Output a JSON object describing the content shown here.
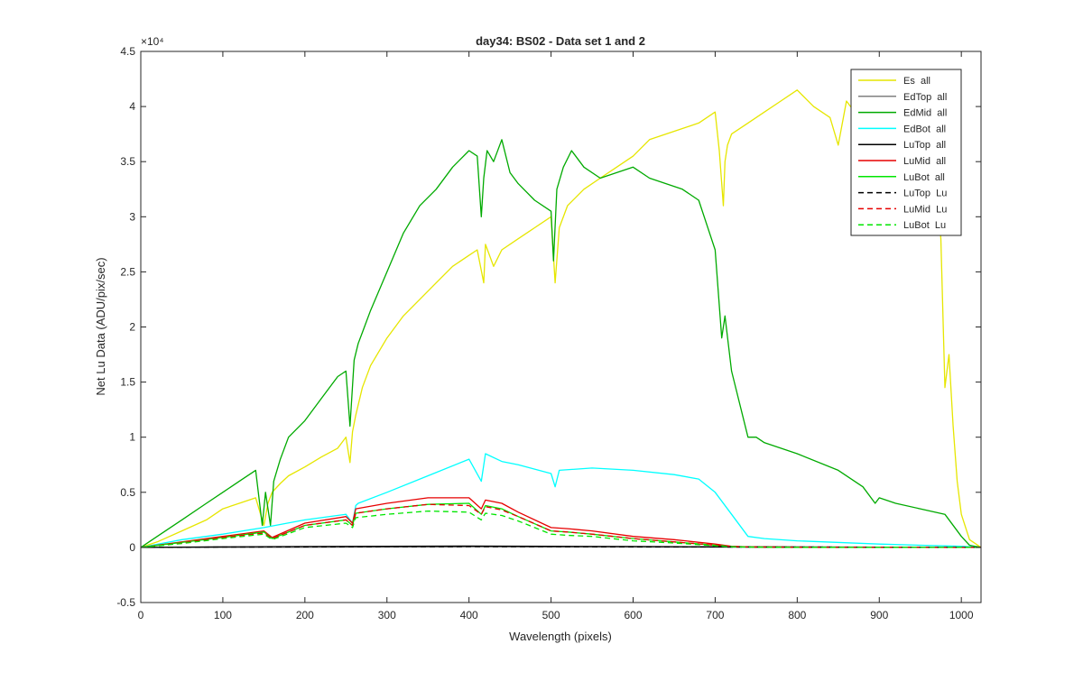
{
  "chart_data": {
    "type": "line",
    "title": "day34: BS02 - Data set 1 and 2",
    "xlabel": "Wavelength (pixels)",
    "ylabel": "Net Lu Data (ADU/pix/sec)",
    "xlim": [
      0,
      1024
    ],
    "ylim": [
      -5000,
      45000
    ],
    "xticks": [
      0,
      100,
      200,
      300,
      400,
      500,
      600,
      700,
      800,
      900,
      1000
    ],
    "xtick_labels": [
      "0",
      "100",
      "200",
      "300",
      "400",
      "500",
      "600",
      "700",
      "800",
      "900",
      "1000"
    ],
    "yticks": [
      -5000,
      0,
      5000,
      10000,
      15000,
      20000,
      25000,
      30000,
      35000,
      40000,
      45000
    ],
    "ytick_labels": [
      "-0.5",
      "0",
      "0.5",
      "1",
      "1.5",
      "2",
      "2.5",
      "3",
      "3.5",
      "4",
      "4.5"
    ],
    "y_exponent_label": "×10⁴",
    "grid": false,
    "legend_position": "top-right",
    "series": [
      {
        "name": "Es  all",
        "color": "#e6e600",
        "dash": "solid",
        "x": [
          0,
          20,
          50,
          80,
          100,
          120,
          140,
          150,
          155,
          160,
          170,
          180,
          200,
          220,
          240,
          250,
          255,
          258,
          262,
          270,
          280,
          300,
          320,
          340,
          360,
          380,
          400,
          410,
          418,
          420,
          430,
          440,
          460,
          480,
          500,
          505,
          510,
          520,
          540,
          560,
          580,
          600,
          620,
          640,
          660,
          680,
          700,
          705,
          710,
          712,
          715,
          720,
          740,
          760,
          780,
          800,
          820,
          840,
          850,
          860,
          870,
          880,
          900,
          920,
          940,
          960,
          970,
          975,
          980,
          985,
          990,
          995,
          1000,
          1010,
          1024
        ],
        "y": [
          0,
          500,
          1500,
          2500,
          3500,
          4000,
          4500,
          2000,
          4000,
          5000,
          5800,
          6500,
          7300,
          8200,
          9000,
          10000,
          7700,
          10500,
          12000,
          14500,
          16500,
          19000,
          21000,
          22500,
          24000,
          25500,
          26500,
          27000,
          24000,
          27500,
          25500,
          27000,
          28000,
          29000,
          30000,
          24000,
          29000,
          31000,
          32500,
          33500,
          34500,
          35500,
          37000,
          37500,
          38000,
          38500,
          39500,
          36000,
          31000,
          35000,
          36500,
          37500,
          38500,
          39500,
          40500,
          41500,
          40000,
          39000,
          36500,
          40500,
          39500,
          40000,
          41000,
          40000,
          39500,
          38000,
          33000,
          28000,
          14500,
          17500,
          11000,
          6000,
          3000,
          700,
          0
        ]
      },
      {
        "name": "EdTop  all",
        "color": "#808080",
        "dash": "solid",
        "x": [
          0,
          200,
          400,
          600,
          800,
          1024
        ],
        "y": [
          0,
          20,
          40,
          30,
          20,
          0
        ]
      },
      {
        "name": "EdMid  all",
        "color": "#00aa00",
        "dash": "solid",
        "x": [
          0,
          20,
          50,
          80,
          100,
          120,
          140,
          148,
          152,
          158,
          162,
          170,
          180,
          200,
          220,
          240,
          250,
          255,
          260,
          265,
          270,
          280,
          300,
          320,
          340,
          360,
          380,
          400,
          410,
          415,
          418,
          422,
          430,
          440,
          450,
          460,
          480,
          500,
          503,
          507,
          515,
          525,
          540,
          560,
          580,
          600,
          620,
          640,
          660,
          680,
          700,
          708,
          712,
          720,
          740,
          750,
          760,
          800,
          850,
          880,
          895,
          900,
          920,
          950,
          980,
          1000,
          1010,
          1024
        ],
        "y": [
          0,
          1000,
          2500,
          4000,
          5000,
          6000,
          7000,
          2000,
          5000,
          2000,
          6000,
          8000,
          10000,
          11500,
          13500,
          15500,
          16000,
          11000,
          17000,
          18500,
          19500,
          21500,
          25000,
          28500,
          31000,
          32500,
          34500,
          36000,
          35500,
          30000,
          33500,
          36000,
          35000,
          37000,
          34000,
          33000,
          31500,
          30500,
          26000,
          32500,
          34500,
          36000,
          34500,
          33500,
          34000,
          34500,
          33500,
          33000,
          32500,
          31500,
          27000,
          19000,
          21000,
          16000,
          10000,
          10000,
          9500,
          8500,
          7000,
          5500,
          4000,
          4500,
          4000,
          3500,
          3000,
          1000,
          200,
          0
        ]
      },
      {
        "name": "EdBot  all",
        "color": "#00ffff",
        "dash": "solid",
        "x": [
          0,
          50,
          100,
          150,
          200,
          250,
          258,
          262,
          265,
          300,
          350,
          400,
          415,
          420,
          440,
          460,
          500,
          505,
          510,
          550,
          600,
          650,
          680,
          700,
          720,
          740,
          760,
          800,
          900,
          1000,
          1024
        ],
        "y": [
          0,
          700,
          1200,
          1800,
          2500,
          3000,
          2200,
          3800,
          4000,
          5000,
          6500,
          8000,
          6000,
          8500,
          7800,
          7500,
          6700,
          5500,
          7000,
          7200,
          7000,
          6600,
          6200,
          5000,
          3000,
          1000,
          800,
          600,
          300,
          100,
          0
        ]
      },
      {
        "name": "LuTop  all",
        "color": "#000000",
        "dash": "solid",
        "x": [
          0,
          100,
          200,
          300,
          400,
          500,
          600,
          700,
          800,
          900,
          1024
        ],
        "y": [
          0,
          50,
          80,
          100,
          120,
          100,
          80,
          60,
          40,
          20,
          0
        ]
      },
      {
        "name": "LuMid  all",
        "color": "#e60000",
        "dash": "solid",
        "x": [
          0,
          50,
          100,
          150,
          160,
          200,
          250,
          258,
          262,
          300,
          350,
          400,
          415,
          420,
          440,
          460,
          500,
          520,
          550,
          600,
          650,
          700,
          720,
          740,
          800,
          900,
          1000,
          1024
        ],
        "y": [
          0,
          500,
          1000,
          1500,
          900,
          2200,
          2800,
          2200,
          3500,
          4000,
          4500,
          4500,
          3500,
          4300,
          4000,
          3200,
          1800,
          1700,
          1500,
          1000,
          700,
          300,
          100,
          50,
          20,
          10,
          5,
          0
        ]
      },
      {
        "name": "LuBot  all",
        "color": "#00e600",
        "dash": "solid",
        "x": [
          0,
          50,
          100,
          150,
          160,
          200,
          250,
          258,
          262,
          300,
          350,
          400,
          415,
          420,
          440,
          460,
          500,
          520,
          550,
          600,
          650,
          700,
          720,
          740,
          800,
          900,
          1000,
          1024
        ],
        "y": [
          0,
          450,
          900,
          1400,
          800,
          2000,
          2500,
          2000,
          3100,
          3500,
          3900,
          4000,
          3000,
          3800,
          3500,
          2800,
          1500,
          1400,
          1200,
          800,
          500,
          200,
          80,
          40,
          15,
          8,
          4,
          0
        ]
      },
      {
        "name": "LuTop  Lu",
        "color": "#000000",
        "dash": "dashed",
        "x": [
          0,
          100,
          200,
          300,
          400,
          500,
          600,
          700,
          800,
          900,
          1024
        ],
        "y": [
          0,
          30,
          50,
          70,
          80,
          70,
          50,
          40,
          30,
          15,
          0
        ]
      },
      {
        "name": "LuMid  Lu",
        "color": "#e60000",
        "dash": "dashed",
        "x": [
          0,
          50,
          100,
          150,
          160,
          200,
          250,
          258,
          262,
          300,
          350,
          400,
          415,
          420,
          440,
          460,
          500,
          520,
          550,
          600,
          650,
          700,
          720,
          740,
          800,
          900,
          1000,
          1024
        ],
        "y": [
          0,
          400,
          900,
          1300,
          800,
          2000,
          2500,
          2000,
          3100,
          3500,
          3900,
          3800,
          3000,
          3700,
          3400,
          2800,
          1500,
          1400,
          1200,
          800,
          500,
          200,
          80,
          40,
          15,
          8,
          4,
          0
        ]
      },
      {
        "name": "LuBot  Lu",
        "color": "#00e600",
        "dash": "dashed",
        "x": [
          0,
          50,
          100,
          150,
          160,
          200,
          250,
          258,
          262,
          300,
          350,
          400,
          415,
          420,
          440,
          460,
          500,
          520,
          550,
          600,
          650,
          700,
          720,
          740,
          800,
          900,
          1000,
          1024
        ],
        "y": [
          0,
          350,
          800,
          1200,
          700,
          1800,
          2200,
          1800,
          2700,
          3000,
          3300,
          3200,
          2500,
          3100,
          2900,
          2400,
          1200,
          1100,
          1000,
          600,
          400,
          150,
          60,
          30,
          10,
          5,
          3,
          0
        ]
      }
    ]
  }
}
